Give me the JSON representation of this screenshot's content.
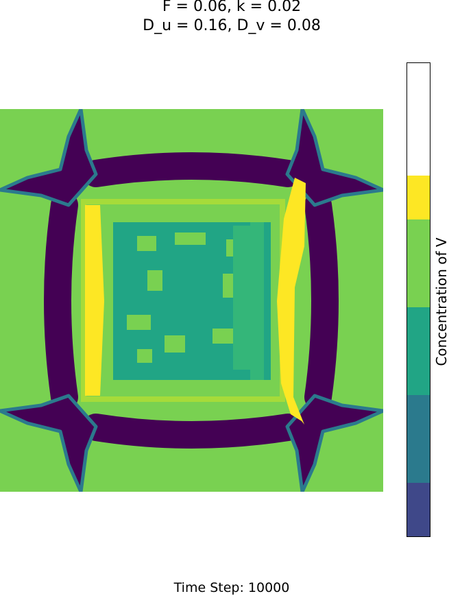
{
  "title": {
    "line1": "F = 0.06, k = 0.02",
    "line2": "D_u = 0.16, D_v = 0.08"
  },
  "footer": {
    "time_step": "Time Step: 10000"
  },
  "chart_data": {
    "type": "heatmap",
    "title": "F = 0.06, k = 0.02\nD_u = 0.16, D_v = 0.08",
    "colorbar_label": "Concentration of V",
    "colormap": "viridis (discrete)",
    "colorbar_levels": [
      {
        "level": 0,
        "color": "#3f4889"
      },
      {
        "level": 1,
        "color": "#2b7a8d"
      },
      {
        "level": 2,
        "color": "#21a585"
      },
      {
        "level": 3,
        "color": "#79d151"
      },
      {
        "level": 4,
        "color": "#fde724"
      },
      {
        "level": 5,
        "color": "#ffffff"
      }
    ],
    "background_color": "#79d151",
    "pattern": "symmetric square ring with corner spikes, purple/teal arcs, yellow inner bars, teal interior",
    "axes_visible": false
  },
  "colors": {
    "purple": "#440154",
    "teal": "#21a585",
    "blue_teal": "#2b7a8d",
    "green": "#79d151",
    "light_green": "#a6db3a",
    "yellow": "#fde724"
  }
}
